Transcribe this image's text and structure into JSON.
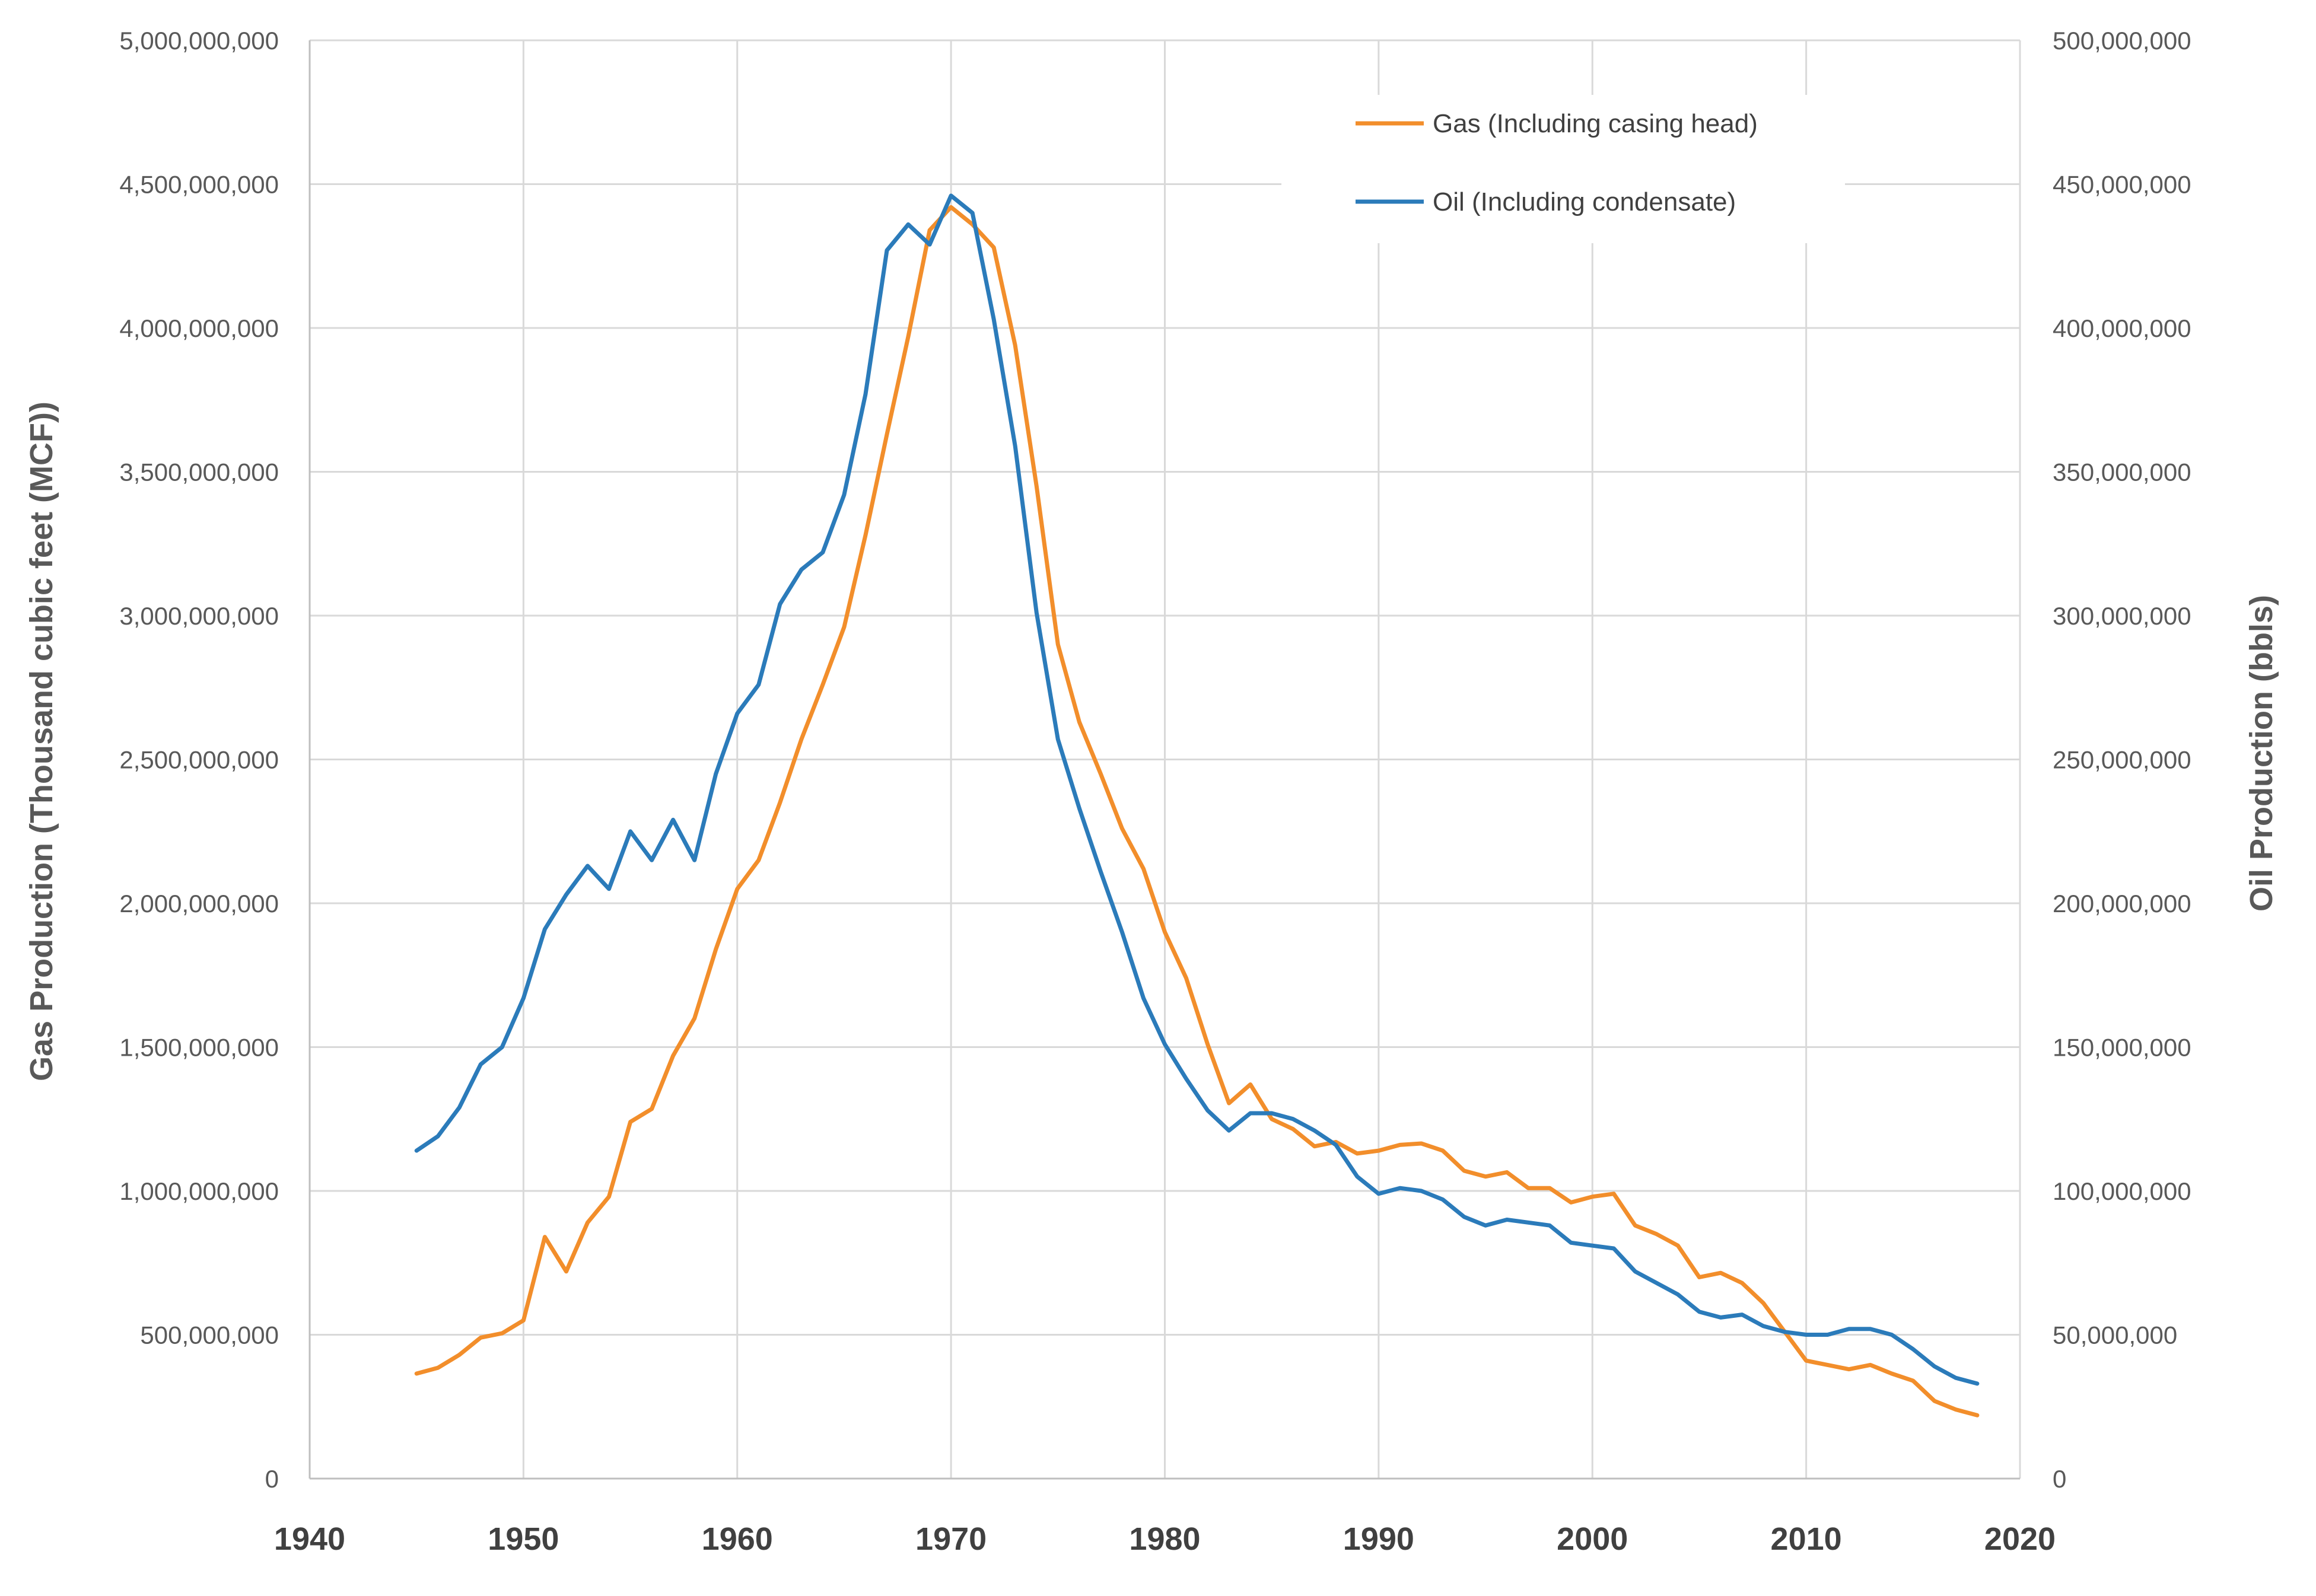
{
  "chart_data": {
    "type": "line",
    "title": "",
    "xlabel": "",
    "ylabel": "Gas Production (Thousand cubic feet (MCF))",
    "y2label": "Oil Production (bbls)",
    "xlim": [
      1940,
      2020
    ],
    "ylim": [
      0,
      5000000000
    ],
    "y2lim": [
      0,
      500000000
    ],
    "x_ticks": [
      "1940",
      "1950",
      "1960",
      "1970",
      "1980",
      "1990",
      "2000",
      "2010",
      "2020"
    ],
    "y_ticks": [
      "0",
      "500,000,000",
      "1,000,000,000",
      "1,500,000,000",
      "2,000,000,000",
      "2,500,000,000",
      "3,000,000,000",
      "3,500,000,000",
      "4,000,000,000",
      "4,500,000,000",
      "5,000,000,000"
    ],
    "y2_ticks": [
      "0",
      "50,000,000",
      "100,000,000",
      "150,000,000",
      "200,000,000",
      "250,000,000",
      "300,000,000",
      "350,000,000",
      "400,000,000",
      "450,000,000",
      "500,000,000"
    ],
    "grid": true,
    "legend_position": "top-right",
    "x": [
      1945,
      1946,
      1947,
      1948,
      1949,
      1950,
      1951,
      1952,
      1953,
      1954,
      1955,
      1956,
      1957,
      1958,
      1959,
      1960,
      1961,
      1962,
      1963,
      1964,
      1965,
      1966,
      1967,
      1968,
      1969,
      1970,
      1971,
      1972,
      1973,
      1974,
      1975,
      1976,
      1977,
      1978,
      1979,
      1980,
      1981,
      1982,
      1983,
      1984,
      1985,
      1986,
      1987,
      1988,
      1989,
      1990,
      1991,
      1992,
      1993,
      1994,
      1995,
      1996,
      1997,
      1998,
      1999,
      2000,
      2001,
      2002,
      2003,
      2004,
      2005,
      2006,
      2007,
      2008,
      2009,
      2010,
      2011,
      2012,
      2013,
      2014,
      2015,
      2016,
      2017,
      2018
    ],
    "series": [
      {
        "name": "Gas (Including casing head)",
        "axis": "left",
        "color": "#f28e2b",
        "values": [
          365000000,
          385000000,
          430000000,
          490000000,
          505000000,
          550000000,
          840000000,
          720000000,
          890000000,
          980000000,
          1240000000,
          1285000000,
          1470000000,
          1600000000,
          1840000000,
          2050000000,
          2150000000,
          2350000000,
          2570000000,
          2760000000,
          2960000000,
          3280000000,
          3630000000,
          3970000000,
          4340000000,
          4420000000,
          4360000000,
          4280000000,
          3940000000,
          3450000000,
          2900000000,
          2630000000,
          2450000000,
          2260000000,
          2120000000,
          1900000000,
          1740000000,
          1510000000,
          1305000000,
          1370000000,
          1250000000,
          1215000000,
          1155000000,
          1170000000,
          1130000000,
          1140000000,
          1160000000,
          1165000000,
          1140000000,
          1070000000,
          1050000000,
          1065000000,
          1010000000,
          1010000000,
          960000000,
          980000000,
          990000000,
          880000000,
          850000000,
          810000000,
          700000000,
          715000000,
          680000000,
          610000000,
          510000000,
          410000000,
          395000000,
          380000000,
          395000000,
          365000000,
          340000000,
          270000000,
          240000000,
          220000000
        ]
      },
      {
        "name": "Oil (Including condensate)",
        "axis": "right",
        "color": "#2b7bba",
        "values": [
          114000000,
          119000000,
          129000000,
          144000000,
          150000000,
          167000000,
          191000000,
          203000000,
          213000000,
          205000000,
          225000000,
          215000000,
          229000000,
          215000000,
          245000000,
          266000000,
          276000000,
          304000000,
          316000000,
          322000000,
          342000000,
          377000000,
          427000000,
          436000000,
          429000000,
          446000000,
          440000000,
          403000000,
          359000000,
          301000000,
          257000000,
          233000000,
          211000000,
          190000000,
          167000000,
          151000000,
          139000000,
          128000000,
          121000000,
          127000000,
          127000000,
          125000000,
          121000000,
          116000000,
          105000000,
          99000000,
          101000000,
          100000000,
          97000000,
          91000000,
          88000000,
          90000000,
          89000000,
          88000000,
          82000000,
          81000000,
          80000000,
          72000000,
          68000000,
          64000000,
          58000000,
          56000000,
          57000000,
          53000000,
          51000000,
          50000000,
          50000000,
          52000000,
          52000000,
          50000000,
          45000000,
          39000000,
          35000000,
          33000000
        ]
      }
    ]
  }
}
